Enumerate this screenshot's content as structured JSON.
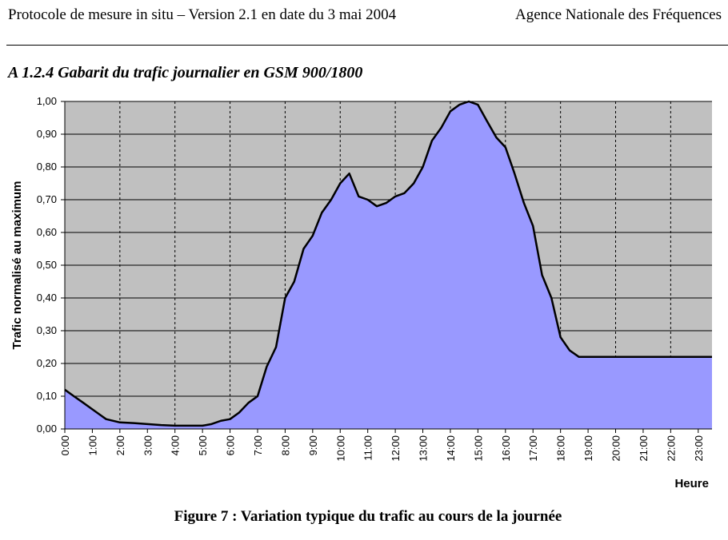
{
  "header": {
    "left": "Protocole de mesure in situ – Version 2.1 en date du 3 mai 2004",
    "right": "Agence Nationale des Fréquences"
  },
  "section_title": "A 1.2.4 Gabarit du trafic journalier en GSM 900/1800",
  "caption": "Figure 7 : Variation typique du trafic au cours de la journée",
  "chart_data": {
    "type": "area",
    "xlabel": "Heure",
    "ylabel": "Trafic normalisé au maximum",
    "ylim": [
      0,
      1
    ],
    "xlim": [
      0,
      23.5
    ],
    "y_ticks": [
      "0,00",
      "0,10",
      "0,20",
      "0,30",
      "0,40",
      "0,50",
      "0,60",
      "0,70",
      "0,80",
      "0,90",
      "1,00"
    ],
    "x_ticks": [
      "0:00",
      "1:00",
      "2:00",
      "3:00",
      "4:00",
      "5:00",
      "6:00",
      "7:00",
      "8:00",
      "9:00",
      "10:00",
      "11:00",
      "12:00",
      "13:00",
      "14:00",
      "15:00",
      "16:00",
      "17:00",
      "18:00",
      "19:00",
      "20:00",
      "21:00",
      "22:00",
      "23:00"
    ],
    "grid": "horizontal solid, vertical dashed every 2 hours",
    "colors": {
      "plot_bg": "#c0c0c0",
      "fill": "#9999ff",
      "line": "#000000"
    },
    "series": [
      {
        "x": [
          0,
          0.33,
          0.67,
          1.0,
          1.5,
          2.0,
          2.5,
          3.0,
          3.5,
          4.0,
          4.5,
          5.0,
          5.33,
          5.67,
          6.0,
          6.33,
          6.67,
          7.0,
          7.33,
          7.67,
          8.0,
          8.33,
          8.67,
          9.0,
          9.33,
          9.67,
          10.0,
          10.33,
          10.67,
          11.0,
          11.33,
          11.67,
          12.0,
          12.33,
          12.67,
          13.0,
          13.33,
          13.67,
          14.0,
          14.33,
          14.67,
          15.0,
          15.33,
          15.67,
          16.0,
          16.33,
          16.67,
          17.0,
          17.33,
          17.67,
          18.0,
          18.33,
          18.67,
          19.0,
          19.33,
          19.67,
          20.0,
          20.33,
          20.67,
          21.0,
          21.33,
          21.67,
          22.0,
          22.33,
          22.67,
          23.0,
          23.5
        ],
        "values": [
          0.12,
          0.1,
          0.08,
          0.06,
          0.03,
          0.02,
          0.018,
          0.015,
          0.012,
          0.01,
          0.01,
          0.01,
          0.015,
          0.025,
          0.03,
          0.05,
          0.08,
          0.1,
          0.19,
          0.25,
          0.4,
          0.45,
          0.55,
          0.59,
          0.66,
          0.7,
          0.75,
          0.78,
          0.71,
          0.7,
          0.68,
          0.69,
          0.71,
          0.72,
          0.75,
          0.8,
          0.88,
          0.92,
          0.97,
          0.99,
          1.0,
          0.99,
          0.94,
          0.89,
          0.86,
          0.78,
          0.69,
          0.62,
          0.47,
          0.4,
          0.28,
          0.24,
          0.22,
          0.22,
          0.22,
          0.22,
          0.22,
          0.22,
          0.22,
          0.22,
          0.22,
          0.22,
          0.22,
          0.22,
          0.22,
          0.22,
          0.22
        ]
      }
    ]
  }
}
